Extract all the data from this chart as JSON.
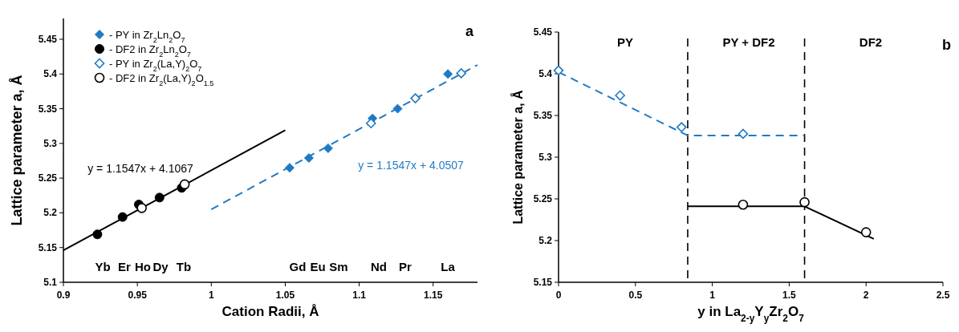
{
  "chart_data": [
    {
      "type": "scatter",
      "xlabel": "Cation Radii, Å",
      "ylabel": "Lattice parameter a, Å",
      "xlim": [
        0.9,
        1.18
      ],
      "xticks": [
        0.9,
        0.95,
        1,
        1.05,
        1.1,
        1.15
      ],
      "ylim": [
        5.1,
        5.48
      ],
      "yticks": [
        5.1,
        5.15,
        5.2,
        5.25,
        5.3,
        5.35,
        5.4,
        5.45
      ],
      "grid": false,
      "legend": "top left",
      "series": [
        {
          "type": "line",
          "color": "#000000",
          "line_style": "solid",
          "marker": "none",
          "x": [
            0.9,
            1.05
          ],
          "values": [
            5.146,
            5.319
          ]
        },
        {
          "type": "line",
          "color": "#1f7ac4",
          "line_style": "dashed",
          "marker": "none",
          "x": [
            1.0,
            1.18
          ],
          "values": [
            5.205,
            5.413
          ]
        },
        {
          "name": "- PY in Zr$_{2}$Ln$_{2}$O$_{7}$",
          "color": "#1f7ac4",
          "marker": "diamond",
          "x": [
            1.053,
            1.066,
            1.079,
            1.109,
            1.126,
            1.16
          ],
          "values": [
            5.265,
            5.279,
            5.293,
            5.336,
            5.35,
            5.4
          ]
        },
        {
          "name": "- DF2 in Zr$_{2}$Ln$_{2}$O$_{7}$",
          "color": "#000000",
          "marker": "circle",
          "x": [
            0.923,
            0.94,
            0.951,
            0.965,
            0.98
          ],
          "values": [
            5.169,
            5.194,
            5.212,
            5.222,
            5.236
          ]
        },
        {
          "name": "- PY in Zr$_{2}$(La,Y)$_{2}$O$_{7}$",
          "color": "#1f7ac4",
          "marker": "diamond-open",
          "x": [
            1.108,
            1.138,
            1.169
          ],
          "values": [
            5.329,
            5.365,
            5.401
          ]
        },
        {
          "name": "- DF2 in Zr$_{2}$(La,Y)$_{2}$O$_{1.5}$",
          "color": "#000000",
          "marker": "circle-open",
          "x": [
            0.953,
            0.982
          ],
          "values": [
            5.207,
            5.241
          ]
        }
      ],
      "annotations": [
        "a",
        "y = 1.1547x + 4.1067",
        "y = 1.1547x + 4.0507",
        "Yb",
        "Er",
        "Ho",
        "Dy",
        "Tb",
        "Gd",
        "Eu",
        "Sm",
        "Nd",
        "Pr",
        "La"
      ]
    },
    {
      "type": "scatter",
      "xlabel": "y in La$_{2-y}$Y$_{y}$Zr$_{2}$O$_{7}$",
      "ylabel": "Lattice parameter a, Å",
      "xlim": [
        0,
        2.5
      ],
      "xticks": [
        0,
        0.5,
        1,
        1.5,
        2,
        2.5
      ],
      "ylim": [
        5.15,
        5.45
      ],
      "yticks": [
        5.15,
        5.2,
        5.25,
        5.3,
        5.35,
        5.4,
        5.45
      ],
      "grid": false,
      "series": [
        {
          "type": "line",
          "color": "#1f7ac4",
          "line_style": "dashed",
          "marker": "none",
          "x": [
            0,
            0.84,
            1.6
          ],
          "values": [
            5.402,
            5.326,
            5.326
          ]
        },
        {
          "type": "line",
          "color": "#000000",
          "line_style": "solid",
          "marker": "none",
          "x": [
            0.84,
            1.6,
            2.05
          ],
          "values": [
            5.241,
            5.241,
            5.202
          ]
        },
        {
          "color": "#1f7ac4",
          "marker": "diamond-open",
          "x": [
            0,
            0.4,
            0.8,
            1.2
          ],
          "values": [
            5.404,
            5.374,
            5.336,
            5.328
          ]
        },
        {
          "color": "#000000",
          "marker": "circle-open",
          "x": [
            1.2,
            1.6,
            2.0
          ],
          "values": [
            5.243,
            5.246,
            5.21
          ]
        }
      ],
      "ref_lines": [
        {
          "axis": "x",
          "value": 0.84,
          "color": "#000000",
          "line_style": "dashed"
        },
        {
          "axis": "x",
          "value": 1.6,
          "color": "#000000",
          "line_style": "dashed"
        }
      ],
      "annotations": [
        "b",
        "PY",
        "PY + DF2",
        "DF2"
      ]
    }
  ]
}
